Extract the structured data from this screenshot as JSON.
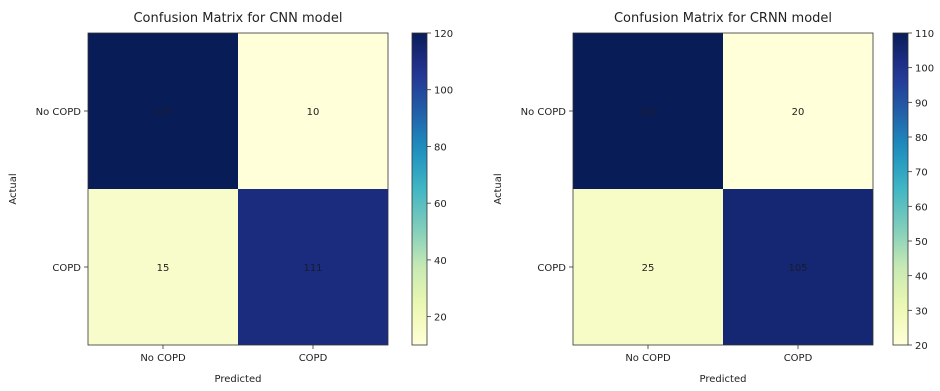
{
  "chart_data": [
    {
      "type": "heatmap",
      "title": "Confusion Matrix for CNN model",
      "xlabel": "Predicted",
      "ylabel": "Actual",
      "x_categories": [
        "No COPD",
        "COPD"
      ],
      "y_categories": [
        "No COPD",
        "COPD"
      ],
      "values": [
        [
          120,
          10
        ],
        [
          15,
          111
        ]
      ],
      "colormap": "YlGnBu",
      "colorbar": {
        "min": 10,
        "max": 120,
        "ticks": [
          20,
          40,
          60,
          80,
          100,
          120
        ]
      }
    },
    {
      "type": "heatmap",
      "title": "Confusion Matrix for CRNN model",
      "xlabel": "Predicted",
      "ylabel": "Actual",
      "x_categories": [
        "No COPD",
        "COPD"
      ],
      "y_categories": [
        "No COPD",
        "COPD"
      ],
      "values": [
        [
          110,
          20
        ],
        [
          25,
          105
        ]
      ],
      "colormap": "YlGnBu",
      "colorbar": {
        "min": 20,
        "max": 110,
        "ticks": [
          20,
          30,
          40,
          50,
          60,
          70,
          80,
          90,
          100,
          110
        ]
      }
    }
  ]
}
